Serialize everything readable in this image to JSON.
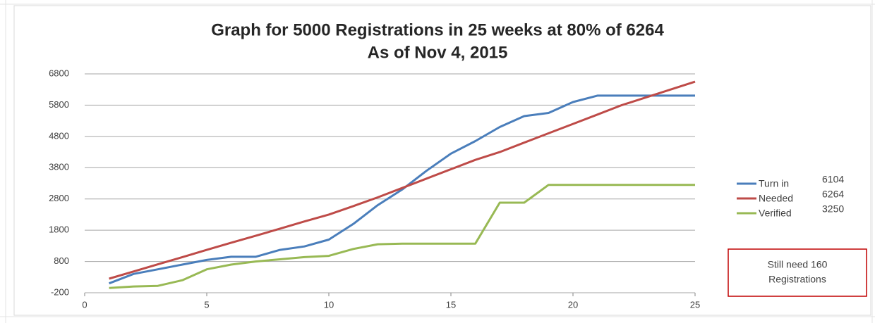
{
  "chart_data": {
    "type": "line",
    "title": "Graph for 5000 Registrations in 25 weeks at 80% of 6264",
    "subtitle": "As of Nov 4, 2015",
    "x": [
      1,
      2,
      3,
      4,
      5,
      6,
      7,
      8,
      9,
      10,
      11,
      12,
      13,
      14,
      15,
      16,
      17,
      18,
      19,
      20,
      21,
      22,
      23,
      24,
      25
    ],
    "series": [
      {
        "name": "Turn in",
        "color": "#4a7ebb",
        "legend_value": "6104",
        "values": [
          100,
          400,
          550,
          700,
          850,
          950,
          950,
          1170,
          1280,
          1500,
          2000,
          2600,
          3100,
          3700,
          4250,
          4650,
          5100,
          5450,
          5550,
          5900,
          6104,
          6104,
          6104,
          6104,
          6104
        ]
      },
      {
        "name": "Needed",
        "color": "#be4b48",
        "legend_value": "6264",
        "values": [
          250,
          480,
          710,
          940,
          1170,
          1400,
          1620,
          1850,
          2080,
          2300,
          2570,
          2850,
          3150,
          3450,
          3750,
          4050,
          4300,
          4600,
          4900,
          5200,
          5500,
          5800,
          6050,
          6300,
          6550
        ]
      },
      {
        "name": "Verified",
        "color": "#98b954",
        "legend_value": "3250",
        "values": [
          -50,
          0,
          20,
          200,
          550,
          700,
          800,
          870,
          940,
          980,
          1200,
          1350,
          1370,
          1370,
          1370,
          1370,
          2680,
          2680,
          3250,
          3250,
          3250,
          3250,
          3250,
          3250,
          3250
        ]
      }
    ],
    "xlim": [
      0,
      25
    ],
    "xticks": [
      0,
      5,
      10,
      15,
      20,
      25
    ],
    "ylim": [
      -200,
      6800
    ],
    "yticks": [
      -200,
      800,
      1800,
      2800,
      3800,
      4800,
      5800,
      6800
    ],
    "grid": true,
    "legend": "right",
    "annotation": [
      "Still need 160",
      "Registrations"
    ]
  }
}
